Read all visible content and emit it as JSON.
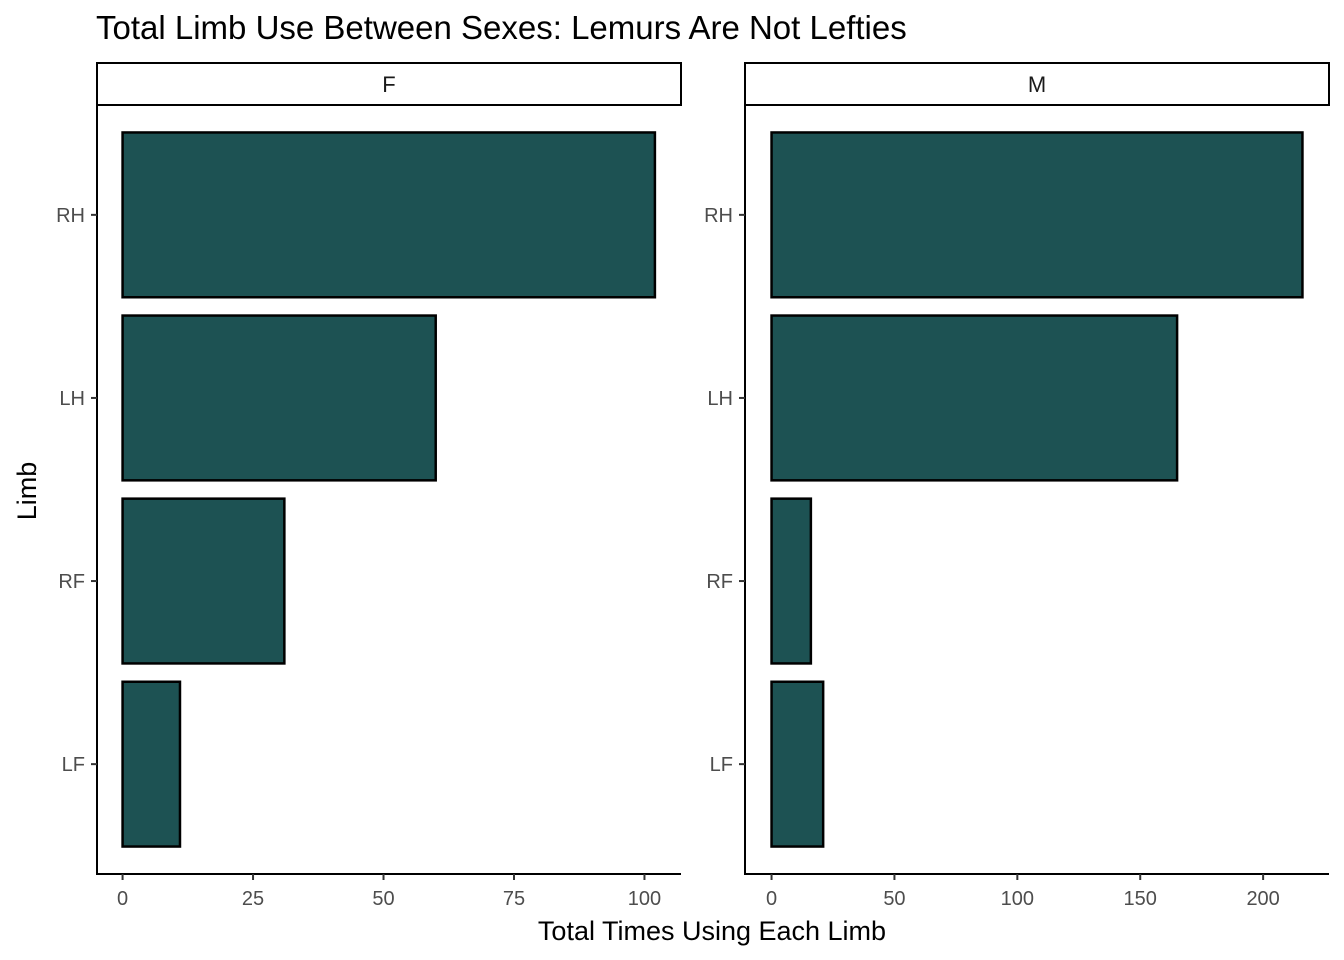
{
  "chart_data": {
    "type": "bar",
    "orientation": "horizontal",
    "title": "Total Limb Use Between Sexes: Lemurs Are Not Lefties",
    "xlabel": "Total Times Using Each Limb",
    "ylabel": "Limb",
    "categories": [
      "RH",
      "LH",
      "RF",
      "LF"
    ],
    "bar_color": "#1d5253",
    "bar_outline": "#000000",
    "grid": false,
    "legend": "none",
    "facets": [
      {
        "label": "F",
        "values": [
          102,
          60,
          31,
          11
        ],
        "xlim": [
          -4.9,
          107
        ],
        "xticks": [
          0,
          25,
          50,
          75,
          100
        ]
      },
      {
        "label": "M",
        "values": [
          216,
          165,
          16,
          21
        ],
        "xlim": [
          -10.8,
          226.8
        ],
        "xticks": [
          0,
          50,
          100,
          150,
          200
        ]
      }
    ]
  }
}
